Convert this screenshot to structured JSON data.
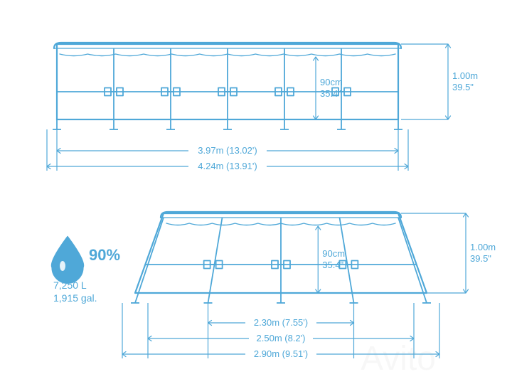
{
  "colors": {
    "line": "#4fa8d8",
    "paleFill": "#eaf5fb",
    "bg": "#ffffff",
    "watermark": "rgba(0,0,0,0.03)"
  },
  "lineWidths": {
    "outline": 2.2,
    "frame": 1.8,
    "dim": 1.2,
    "scallop": 1.4
  },
  "capacity": {
    "percent": "90%",
    "litres": "7,250 L",
    "gallons": "1,915 gal."
  },
  "views": {
    "front": {
      "height_m": "1.00m",
      "height_in": "39.5\"",
      "waterline_cm": "90cm",
      "waterline_in": "35.4\"",
      "length_inner_m": "3.97m (13.02')",
      "length_outer_m": "4.24m (13.91')"
    },
    "side": {
      "height_m": "1.00m",
      "height_in": "39.5\"",
      "waterline_cm": "90cm",
      "waterline_in": "35.4\"",
      "width_inner_m": "2.30m (7.55')",
      "width_mid_m": "2.50m (8.2')",
      "width_outer_m": "2.90m (9.51')"
    }
  },
  "watermark": "Avito"
}
